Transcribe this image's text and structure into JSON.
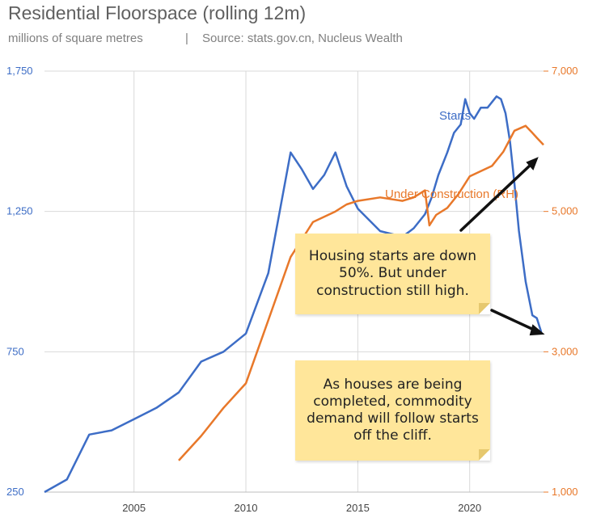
{
  "chart_data": {
    "type": "line",
    "title": "Residential Floorspace (rolling 12m)",
    "subtitle_units": "millions of square metres",
    "subtitle_separator": "|",
    "subtitle_source": "Source: stats.gov.cn, Nucleus Wealth",
    "xlim": [
      2001,
      2023.3
    ],
    "x_ticks": [
      2005,
      2010,
      2015,
      2020
    ],
    "y_left": {
      "lim": [
        250,
        1750
      ],
      "ticks": [
        "250",
        "750",
        "1,250",
        "1,750"
      ],
      "tick_values": [
        250,
        750,
        1250,
        1750
      ],
      "color": "#3d6dc6"
    },
    "y_right": {
      "lim": [
        1000,
        7000
      ],
      "ticks": [
        "1,000",
        "3,000",
        "5,000",
        "7,000"
      ],
      "tick_values": [
        1000,
        3000,
        5000,
        7000
      ],
      "color": "#e8782a"
    },
    "grid": true,
    "series": [
      {
        "name": "Starts",
        "axis": "left",
        "color": "#3d6dc6",
        "x": [
          2001,
          2002,
          2003,
          2004,
          2005,
          2006,
          2007,
          2008,
          2009,
          2010,
          2011,
          2012,
          2012.5,
          2013,
          2013.5,
          2014,
          2014.5,
          2015,
          2015.5,
          2016,
          2016.5,
          2017,
          2017.5,
          2018,
          2018.3,
          2018.6,
          2019,
          2019.3,
          2019.6,
          2019.8,
          2020,
          2020.2,
          2020.5,
          2020.8,
          2021,
          2021.2,
          2021.4,
          2021.6,
          2021.8,
          2022,
          2022.2,
          2022.5,
          2022.8,
          2023,
          2023.2
        ],
        "values": [
          250,
          295,
          455,
          470,
          510,
          550,
          605,
          715,
          750,
          815,
          1030,
          1460,
          1400,
          1330,
          1380,
          1460,
          1340,
          1260,
          1220,
          1180,
          1170,
          1160,
          1190,
          1240,
          1300,
          1380,
          1460,
          1530,
          1560,
          1650,
          1600,
          1580,
          1620,
          1620,
          1640,
          1660,
          1650,
          1600,
          1500,
          1350,
          1180,
          1000,
          880,
          870,
          820
        ]
      },
      {
        "name": "Under Construction (RH)",
        "axis": "right",
        "color": "#e8782a",
        "x": [
          2007,
          2008,
          2009,
          2010,
          2011,
          2012,
          2013,
          2014,
          2014.5,
          2015,
          2016,
          2017,
          2017.5,
          2018,
          2018.2,
          2018.5,
          2019,
          2019.5,
          2020,
          2021,
          2021.5,
          2022,
          2022.5,
          2022.8,
          2023,
          2023.3
        ],
        "values": [
          1450,
          1800,
          2200,
          2550,
          3450,
          4350,
          4850,
          5000,
          5100,
          5150,
          5200,
          5150,
          5200,
          5300,
          4800,
          4950,
          5050,
          5250,
          5500,
          5650,
          5850,
          6150,
          6220,
          6120,
          6050,
          5950
        ]
      }
    ],
    "series_labels": [
      "Starts",
      "Under Construction (RH)"
    ],
    "annotations": [
      {
        "text": "Housing starts are down 50%. But under construction still high."
      },
      {
        "text": "As houses are being completed, commodity demand will follow starts off the cliff."
      }
    ]
  }
}
